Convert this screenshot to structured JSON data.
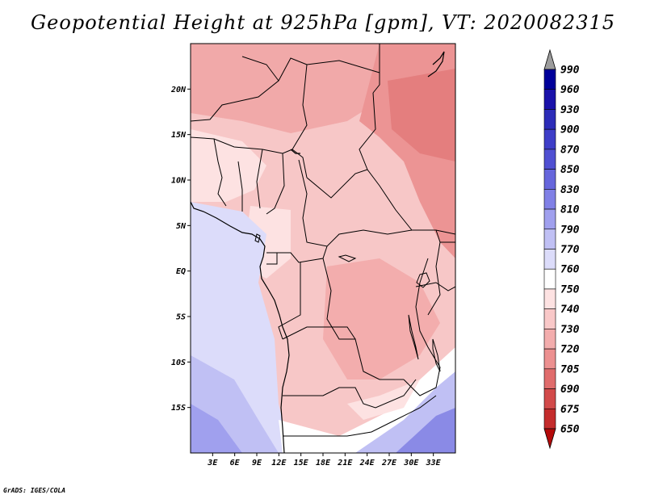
{
  "title": "Geopotential Height at 925hPa [gpm], VT: 2020082315",
  "footer": "GrADS: IGES/COLA",
  "map": {
    "variable": "Geopotential Height",
    "level": "925hPa",
    "units": "gpm",
    "valid_time": "2020082315",
    "lon_range_deg": [
      0,
      36
    ],
    "lat_range_deg": [
      -20,
      25
    ],
    "lat_labels": [
      "20N",
      "15N",
      "10N",
      "5N",
      "EQ",
      "5S",
      "10S",
      "15S"
    ],
    "lon_labels": [
      "3E",
      "6E",
      "9E",
      "12E",
      "15E",
      "18E",
      "21E",
      "24E",
      "27E",
      "30E",
      "33E"
    ]
  },
  "colorbar": {
    "levels": [
      "990",
      "960",
      "930",
      "900",
      "870",
      "850",
      "830",
      "810",
      "790",
      "770",
      "760",
      "750",
      "740",
      "730",
      "720",
      "705",
      "690",
      "675",
      "650"
    ],
    "colors": [
      "#00009a",
      "#1a12aa",
      "#2c2cb8",
      "#3e3ec8",
      "#5050d2",
      "#6666dc",
      "#8080e6",
      "#a0a0ee",
      "#c0c0f4",
      "#dcdcfa",
      "#ffffff",
      "#fde2e2",
      "#f9c8c8",
      "#f3adad",
      "#ec9090",
      "#e06c6c",
      "#d24a4a",
      "#c42c2c",
      "#b40a0a"
    ],
    "top_arrow_color": "#9c9c9c",
    "bottom_arrow_color": "#b40a0a"
  }
}
